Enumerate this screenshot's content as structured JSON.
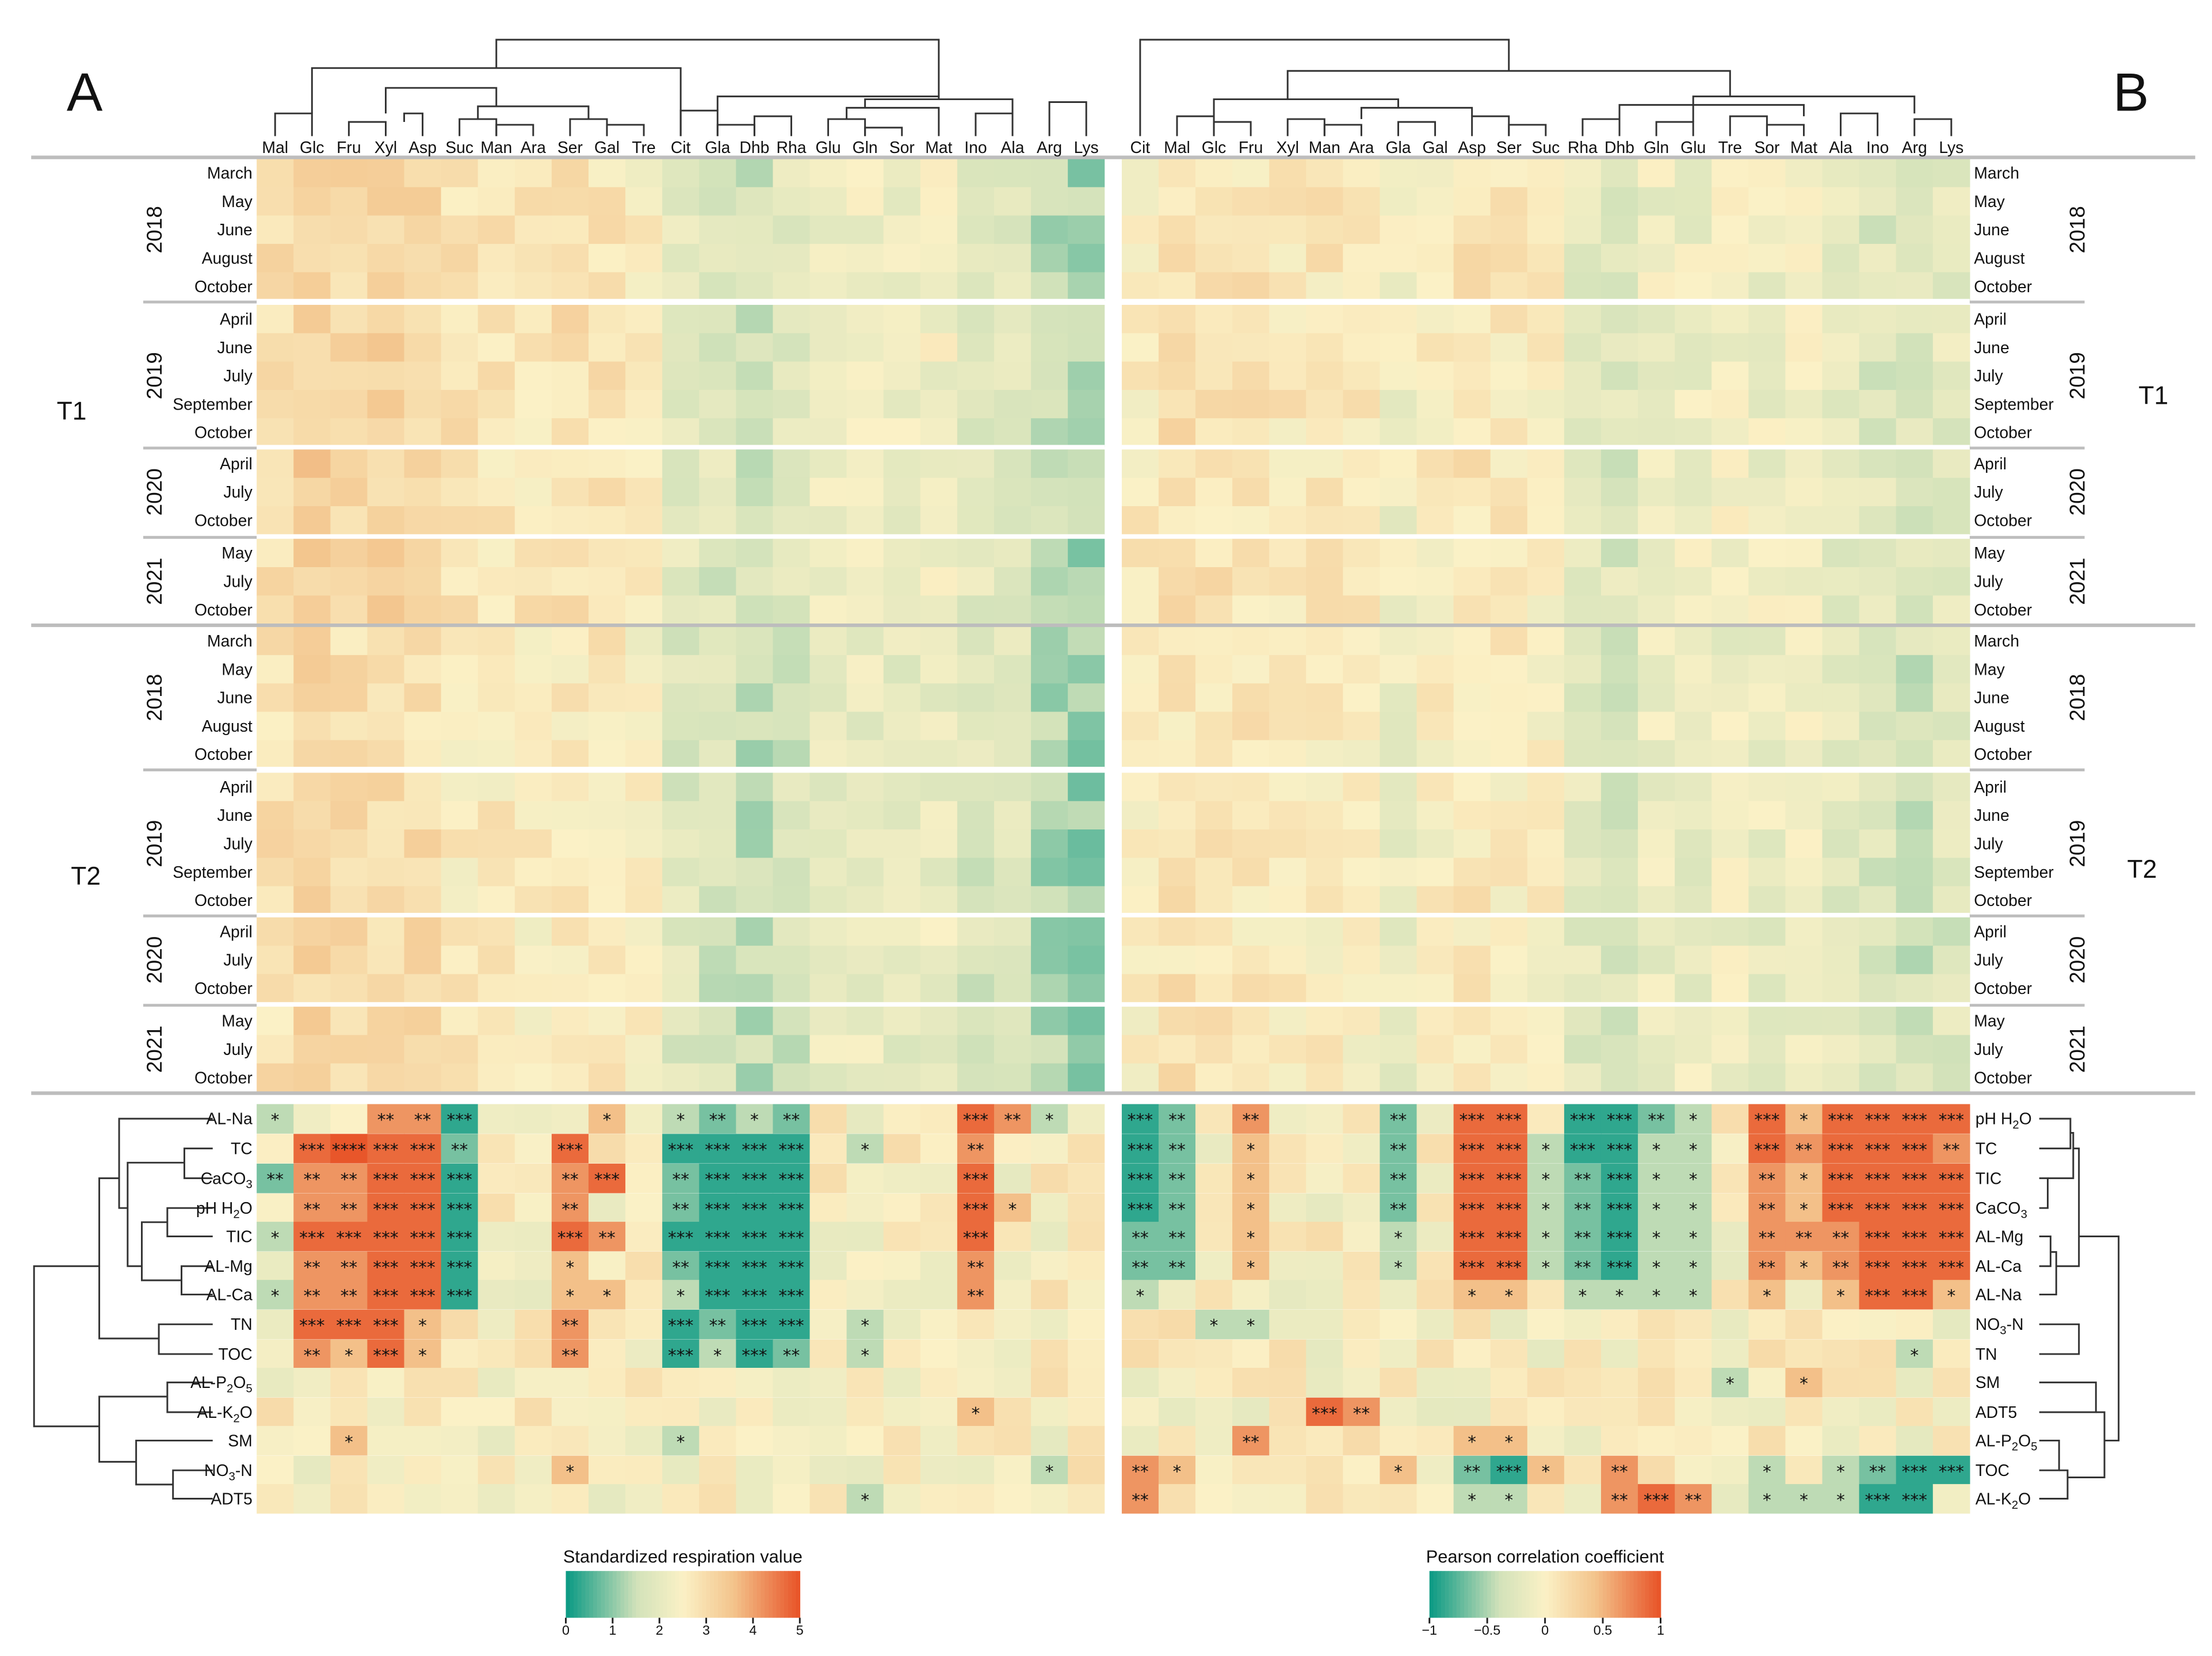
{
  "chart_data": [
    {
      "panel": "A",
      "type": "heatmap",
      "title": "A",
      "colorbar": {
        "label": "Standardized respiration value",
        "ticks": [
          "0",
          "1",
          "2",
          "3",
          "4",
          "5"
        ],
        "range": [
          0,
          5
        ]
      },
      "columns": [
        "Mal",
        "Glc",
        "Fru",
        "Xyl",
        "Asp",
        "Suc",
        "Man",
        "Ara",
        "Ser",
        "Gal",
        "Tre",
        "Cit",
        "Gla",
        "Dhb",
        "Rha",
        "Glu",
        "Gln",
        "Sor",
        "Mat",
        "Ino",
        "Ala",
        "Arg",
        "Lys"
      ],
      "treatments": [
        "T1",
        "T2"
      ],
      "years": [
        {
          "year": "2018",
          "months": [
            "March",
            "May",
            "June",
            "August",
            "October"
          ]
        },
        {
          "year": "2019",
          "months": [
            "April",
            "June",
            "July",
            "September",
            "October"
          ]
        },
        {
          "year": "2020",
          "months": [
            "April",
            "July",
            "October"
          ]
        },
        {
          "year": "2021",
          "months": [
            "May",
            "July",
            "October"
          ]
        }
      ],
      "soil_rows": [
        "AL-Na",
        "TC",
        "CaCO3",
        "pH H2O",
        "TIC",
        "AL-Mg",
        "AL-Ca",
        "TN",
        "TOC",
        "AL-P2O5",
        "AL-K2O",
        "SM",
        "NO3-N",
        "ADT5"
      ],
      "significance": [
        [
          "*",
          "",
          "",
          "**",
          "**",
          "***",
          "",
          "",
          "",
          "*",
          "",
          "*",
          "**",
          "*",
          "**",
          "",
          "",
          "",
          "",
          "***",
          "**",
          "*",
          ""
        ],
        [
          "",
          "***",
          "****",
          "***",
          "***",
          "**",
          "",
          "",
          "***",
          "",
          "",
          "***",
          "***",
          "***",
          "***",
          "",
          "*",
          "",
          "",
          "**",
          "",
          "",
          ""
        ],
        [
          "**",
          "**",
          "**",
          "***",
          "***",
          "***",
          "",
          "",
          "**",
          "***",
          "",
          "**",
          "***",
          "***",
          "***",
          "",
          "",
          "",
          "",
          "***",
          "",
          "",
          ""
        ],
        [
          "",
          "**",
          "**",
          "***",
          "***",
          "***",
          "",
          "",
          "**",
          "",
          "",
          "**",
          "***",
          "***",
          "***",
          "",
          "",
          "",
          "",
          "***",
          "*",
          "",
          ""
        ],
        [
          "*",
          "***",
          "***",
          "***",
          "***",
          "***",
          "",
          "",
          "***",
          "**",
          "",
          "***",
          "***",
          "***",
          "***",
          "",
          "",
          "",
          "",
          "***",
          "",
          "",
          ""
        ],
        [
          "",
          "**",
          "**",
          "***",
          "***",
          "***",
          "",
          "",
          "*",
          "",
          "",
          "**",
          "***",
          "***",
          "***",
          "",
          "",
          "",
          "",
          "**",
          "",
          "",
          ""
        ],
        [
          "*",
          "**",
          "**",
          "***",
          "***",
          "***",
          "",
          "",
          "*",
          "*",
          "",
          "*",
          "***",
          "***",
          "***",
          "",
          "",
          "",
          "",
          "**",
          "",
          "",
          ""
        ],
        [
          "",
          "***",
          "***",
          "***",
          "*",
          "",
          "",
          "",
          "**",
          "",
          "",
          "***",
          "**",
          "***",
          "***",
          "",
          "*",
          "",
          "",
          "",
          "",
          "",
          ""
        ],
        [
          "",
          "**",
          "*",
          "***",
          "*",
          "",
          "",
          "",
          "**",
          "",
          "",
          "***",
          "*",
          "***",
          "**",
          "",
          "*",
          "",
          "",
          "",
          "",
          "",
          ""
        ],
        [
          "",
          "",
          "",
          "",
          "",
          "",
          "",
          "",
          "",
          "",
          "",
          "",
          "",
          "",
          "",
          "",
          "",
          "",
          "",
          "",
          "",
          "",
          ""
        ],
        [
          "",
          "",
          "",
          "",
          "",
          "",
          "",
          "",
          "",
          "",
          "",
          "",
          "",
          "",
          "",
          "",
          "",
          "",
          "",
          "*",
          "",
          "",
          ""
        ],
        [
          "",
          "",
          "*",
          "",
          "",
          "",
          "",
          "",
          "",
          "",
          "",
          "*",
          "",
          "",
          "",
          "",
          "",
          "",
          "",
          "",
          "",
          "",
          ""
        ],
        [
          "",
          "",
          "",
          "",
          "",
          "",
          "",
          "",
          "*",
          "",
          "",
          "",
          "",
          "",
          "",
          "",
          "",
          "",
          "",
          "",
          "",
          "*",
          ""
        ],
        [
          "",
          "",
          "",
          "",
          "",
          "",
          "",
          "",
          "",
          "",
          "",
          "",
          "",
          "",
          "",
          "",
          "*",
          "",
          "",
          "",
          "",
          "",
          ""
        ]
      ]
    },
    {
      "panel": "B",
      "type": "heatmap",
      "title": "B",
      "colorbar": {
        "label": "Pearson correlation coefficient",
        "ticks": [
          "−1",
          "−0.5",
          "0",
          "0.5",
          "1"
        ],
        "range": [
          -1,
          1
        ]
      },
      "columns": [
        "Cit",
        "Mal",
        "Glc",
        "Fru",
        "Xyl",
        "Man",
        "Ara",
        "Gla",
        "Gal",
        "Asp",
        "Ser",
        "Suc",
        "Rha",
        "Dhb",
        "Gln",
        "Glu",
        "Tre",
        "Sor",
        "Mat",
        "Ala",
        "Ino",
        "Arg",
        "Lys"
      ],
      "treatments": [
        "T1",
        "T2"
      ],
      "years": [
        {
          "year": "2018",
          "months": [
            "March",
            "May",
            "June",
            "August",
            "October"
          ]
        },
        {
          "year": "2019",
          "months": [
            "April",
            "June",
            "July",
            "September",
            "October"
          ]
        },
        {
          "year": "2020",
          "months": [
            "April",
            "July",
            "October"
          ]
        },
        {
          "year": "2021",
          "months": [
            "May",
            "July",
            "October"
          ]
        }
      ],
      "soil_rows": [
        "pH H2O",
        "TC",
        "TIC",
        "CaCO3",
        "AL-Mg",
        "AL-Ca",
        "AL-Na",
        "NO3-N",
        "TN",
        "SM",
        "ADT5",
        "AL-P2O5",
        "TOC",
        "AL-K2O"
      ],
      "significance": [
        [
          "***",
          "**",
          "",
          "**",
          "",
          "",
          "",
          "**",
          "",
          "***",
          "***",
          "",
          "***",
          "***",
          "**",
          "*",
          "",
          "***",
          "*",
          "***",
          "***",
          "***",
          "***"
        ],
        [
          "***",
          "**",
          "",
          "*",
          "",
          "",
          "",
          "**",
          "",
          "***",
          "***",
          "*",
          "***",
          "***",
          "*",
          "*",
          "",
          "***",
          "**",
          "***",
          "***",
          "***",
          "**"
        ],
        [
          "***",
          "**",
          "",
          "*",
          "",
          "",
          "",
          "**",
          "",
          "***",
          "***",
          "*",
          "**",
          "***",
          "*",
          "*",
          "",
          "**",
          "*",
          "***",
          "***",
          "***",
          "***"
        ],
        [
          "***",
          "**",
          "",
          "*",
          "",
          "",
          "",
          "**",
          "",
          "***",
          "***",
          "*",
          "**",
          "***",
          "*",
          "*",
          "",
          "**",
          "*",
          "***",
          "***",
          "***",
          "***"
        ],
        [
          "**",
          "**",
          "",
          "*",
          "",
          "",
          "",
          "*",
          "",
          "***",
          "***",
          "*",
          "**",
          "***",
          "*",
          "*",
          "",
          "**",
          "**",
          "**",
          "***",
          "***",
          "***"
        ],
        [
          "**",
          "**",
          "",
          "*",
          "",
          "",
          "",
          "*",
          "",
          "***",
          "***",
          "*",
          "**",
          "***",
          "*",
          "*",
          "",
          "**",
          "*",
          "**",
          "***",
          "***",
          "***"
        ],
        [
          "*",
          "",
          "",
          "",
          "",
          "",
          "",
          "",
          "",
          "*",
          "*",
          "",
          "*",
          "*",
          "*",
          "*",
          "",
          "*",
          "",
          "*",
          "***",
          "***",
          "*"
        ],
        [
          "",
          "",
          "*",
          "*",
          "",
          "",
          "",
          "",
          "",
          "",
          "",
          "",
          "",
          "",
          "",
          "",
          "",
          "",
          "",
          "",
          "",
          "",
          ""
        ],
        [
          "",
          "",
          "",
          "",
          "",
          "",
          "",
          "",
          "",
          "",
          "",
          "",
          "",
          "",
          "",
          "",
          "",
          "",
          "",
          "",
          "",
          "*",
          ""
        ],
        [
          "",
          "",
          "",
          "",
          "",
          "",
          "",
          "",
          "",
          "",
          "",
          "",
          "",
          "",
          "",
          "",
          "*",
          "",
          "*",
          "",
          "",
          "",
          ""
        ],
        [
          "",
          "",
          "",
          "",
          "",
          "***",
          "**",
          "",
          "",
          "",
          "",
          "",
          "",
          "",
          "",
          "",
          "",
          "",
          "",
          "",
          "",
          "",
          ""
        ],
        [
          "",
          "",
          "",
          "**",
          "",
          "",
          "",
          "",
          "",
          "*",
          "*",
          "",
          "",
          "",
          "",
          "",
          "",
          "",
          "",
          "",
          "",
          "",
          ""
        ],
        [
          "**",
          "*",
          "",
          "",
          "",
          "",
          "",
          "*",
          "",
          "**",
          "***",
          "*",
          "",
          "**",
          "",
          "",
          "",
          "*",
          "",
          "*",
          "**",
          "***",
          "***"
        ],
        [
          "**",
          "",
          "",
          "",
          "",
          "",
          "",
          "",
          "",
          "*",
          "*",
          "",
          "",
          "**",
          "***",
          "**",
          "",
          "*",
          "*",
          "*",
          "***",
          "***",
          ""
        ]
      ]
    }
  ],
  "soil_labels": {
    "AL-Na": [
      "AL-Na",
      "",
      ""
    ],
    "TC": [
      "TC",
      "",
      ""
    ],
    "CaCO3": [
      "CaCO",
      "3",
      ""
    ],
    "pH H2O": [
      "pH H",
      "2",
      "O"
    ],
    "TIC": [
      "TIC",
      "",
      ""
    ],
    "AL-Mg": [
      "AL-Mg",
      "",
      ""
    ],
    "AL-Ca": [
      "AL-Ca",
      "",
      ""
    ],
    "TN": [
      "TN",
      "",
      ""
    ],
    "TOC": [
      "TOC",
      "",
      ""
    ],
    "AL-P2O5": [
      "AL-P",
      "2",
      "O",
      "5"
    ],
    "AL-K2O": [
      "AL-K",
      "2",
      "O"
    ],
    "SM": [
      "SM",
      "",
      ""
    ],
    "NO3-N": [
      "NO",
      "3",
      "-N"
    ],
    "ADT5": [
      "ADT5",
      "",
      ""
    ]
  },
  "colors": {
    "low_teal": "#0e9b85",
    "mid_cream": "#fbf1c6",
    "high_orange": "#e8562a",
    "grid_line": "#bfbfbf"
  }
}
